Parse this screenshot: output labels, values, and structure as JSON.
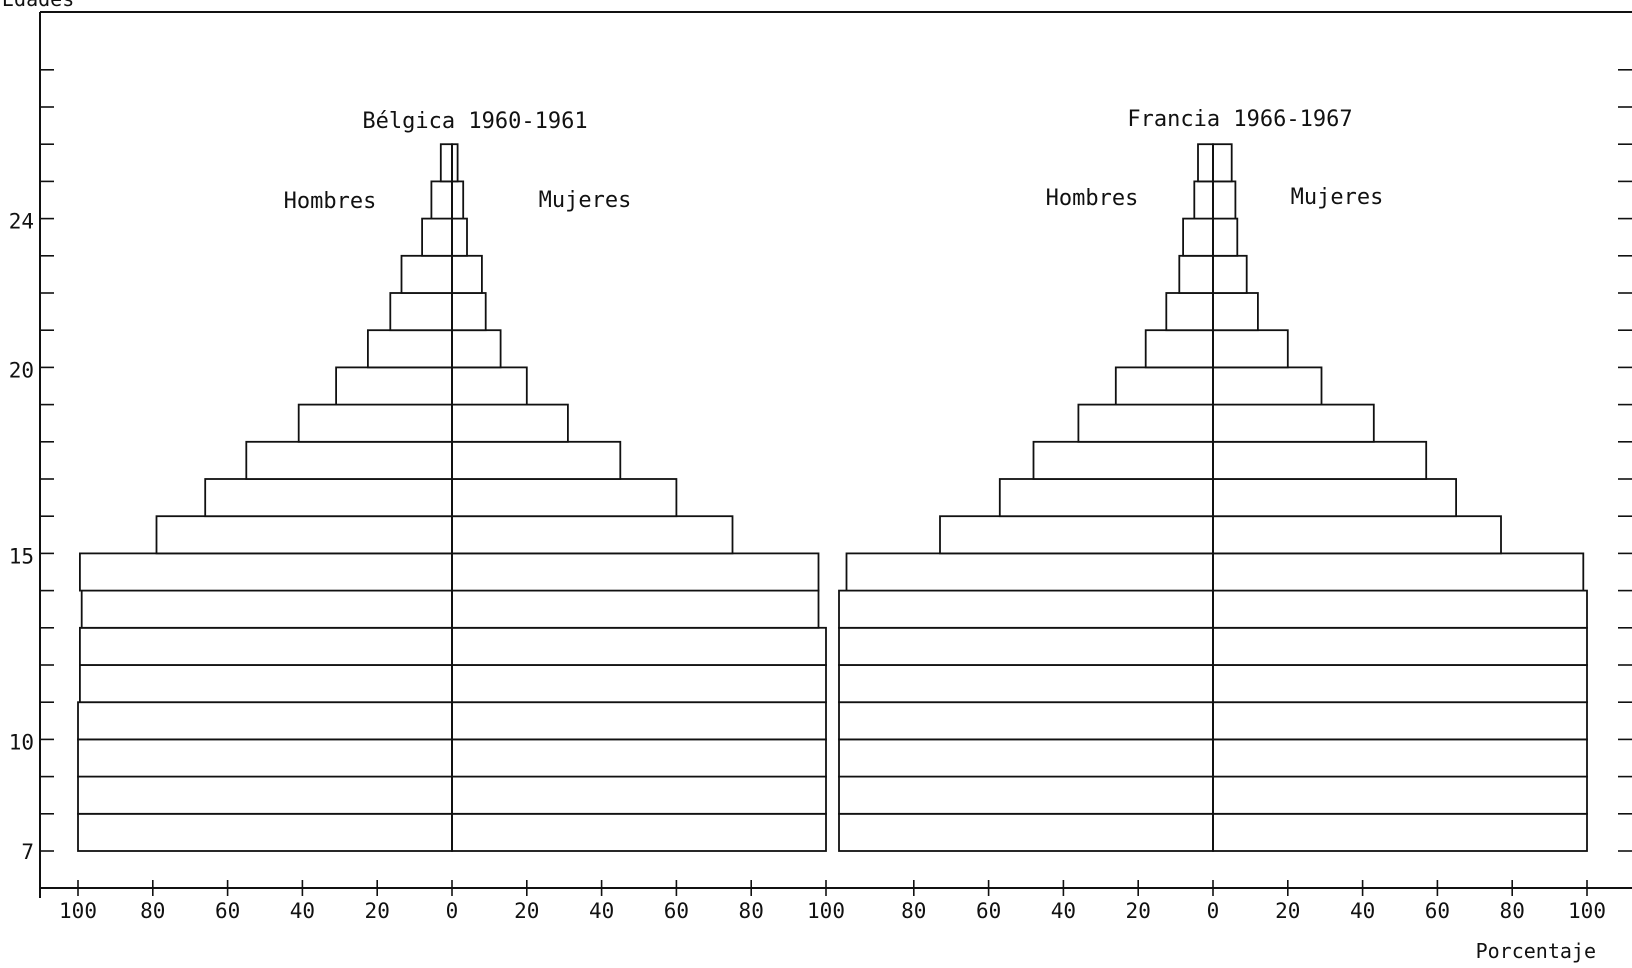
{
  "chart_data": {
    "type": "bar",
    "subtype": "population-pyramid",
    "ylabel": "Edades",
    "xlabel": "Porcentaje",
    "y_ticks": [
      7,
      10,
      15,
      20,
      24
    ],
    "x_ticks": [
      "100",
      "80",
      "60",
      "40",
      "20",
      "0",
      "20",
      "40",
      "60",
      "80",
      "100",
      "80",
      "60",
      "40",
      "20",
      "0",
      "20",
      "40",
      "60",
      "80",
      "100"
    ],
    "panels": [
      {
        "title": "Bélgica 1960-1961",
        "left_label": "Hombres",
        "right_label": "Mujeres",
        "ages": [
          7,
          8,
          9,
          10,
          11,
          12,
          13,
          14,
          15,
          16,
          17,
          18,
          19,
          20,
          21,
          22,
          23,
          24,
          25
        ],
        "hombres": [
          100,
          100,
          100,
          100,
          99.5,
          99.5,
          99,
          99.5,
          79,
          66,
          55,
          41,
          31,
          22.5,
          16.5,
          13.5,
          8,
          5.5,
          3
        ],
        "mujeres": [
          100,
          100,
          100,
          100,
          100,
          100,
          98,
          98,
          75,
          60,
          45,
          31,
          20,
          13,
          9,
          8,
          4,
          3,
          1.5
        ]
      },
      {
        "title": "Francia 1966-1967",
        "left_label": "Hombres",
        "right_label": "Mujeres",
        "ages": [
          7,
          8,
          9,
          10,
          11,
          12,
          13,
          14,
          15,
          16,
          17,
          18,
          19,
          20,
          21,
          22,
          23,
          24,
          25
        ],
        "hombres": [
          100,
          100,
          100,
          100,
          100,
          100,
          100,
          98,
          73,
          57,
          48,
          36,
          26,
          18,
          12.5,
          9,
          8,
          5,
          4
        ],
        "mujeres": [
          100,
          100,
          100,
          100,
          100,
          100,
          100,
          99,
          77,
          65,
          57,
          43,
          29,
          20,
          12,
          9,
          6.5,
          6,
          5
        ]
      }
    ],
    "grid": false,
    "legend": "none"
  }
}
